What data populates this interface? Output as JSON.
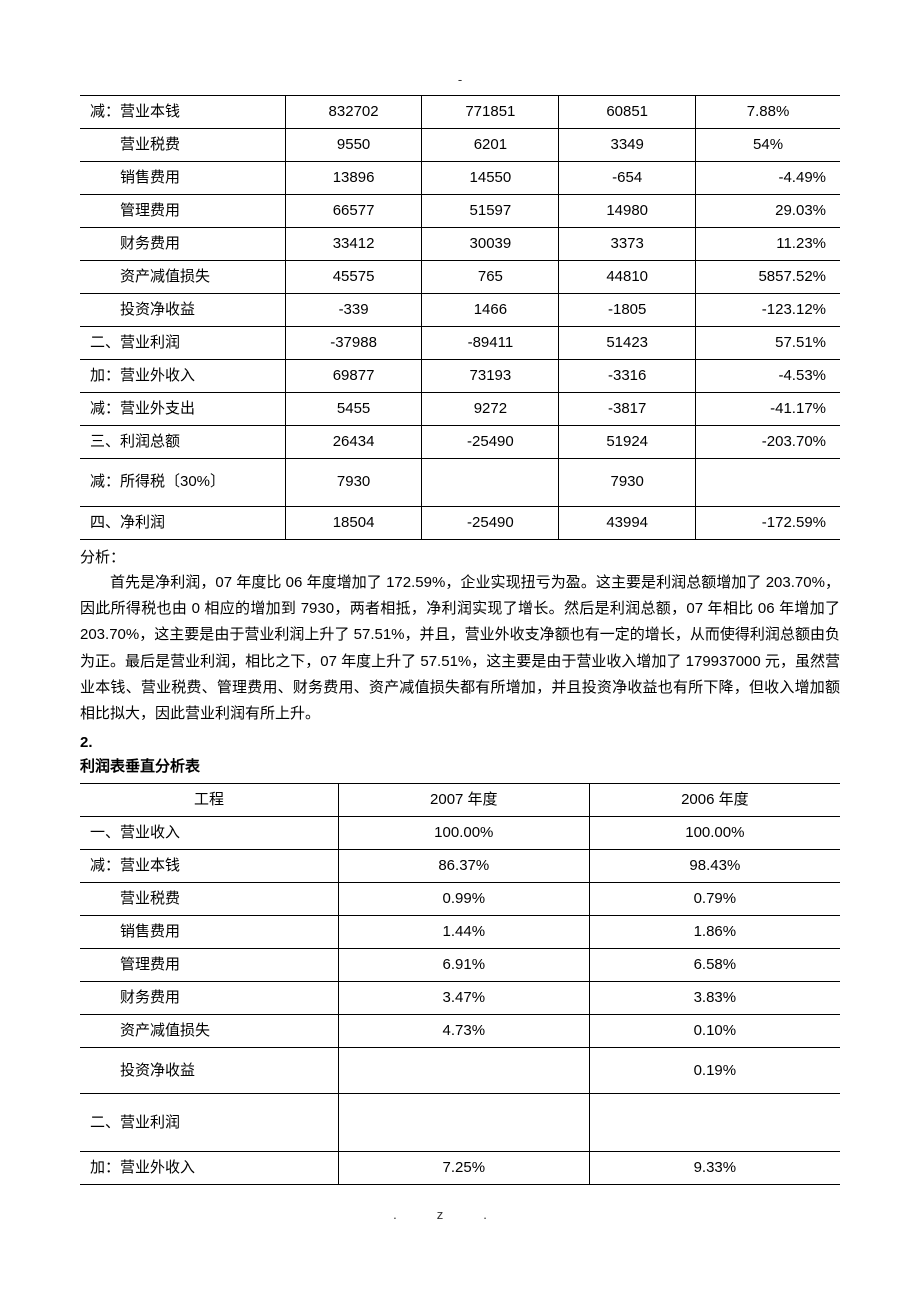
{
  "topMark": "-",
  "table1": {
    "rows": [
      {
        "label": "减：营业本钱",
        "v1": "832702",
        "v2": "771851",
        "v3": "60851",
        "v4": "7.88%",
        "tall": false,
        "align": "c"
      },
      {
        "label": "　　营业税费",
        "v1": "9550",
        "v2": "6201",
        "v3": "3349",
        "v4": "54%",
        "tall": false,
        "align": "c"
      },
      {
        "label": "　　销售费用",
        "v1": "13896",
        "v2": "14550",
        "v3": "-654",
        "v4": "-4.49%",
        "tall": false,
        "align": "r"
      },
      {
        "label": "　　管理费用",
        "v1": "66577",
        "v2": "51597",
        "v3": "14980",
        "v4": "29.03%",
        "tall": false,
        "align": "r"
      },
      {
        "label": "　　财务费用",
        "v1": "33412",
        "v2": "30039",
        "v3": "3373",
        "v4": "11.23%",
        "tall": false,
        "align": "r"
      },
      {
        "label": "　　资产减值损失",
        "v1": "45575",
        "v2": "765",
        "v3": "44810",
        "v4": "5857.52%",
        "tall": false,
        "align": "r"
      },
      {
        "label": "　　投资净收益",
        "v1": "-339",
        "v2": "1466",
        "v3": "-1805",
        "v4": "-123.12%",
        "tall": false,
        "align": "r"
      },
      {
        "label": "二、营业利润",
        "v1": "-37988",
        "v2": "-89411",
        "v3": "51423",
        "v4": "57.51%",
        "tall": false,
        "align": "r"
      },
      {
        "label": "加：营业外收入",
        "v1": "69877",
        "v2": "73193",
        "v3": "-3316",
        "v4": "-4.53%",
        "tall": false,
        "align": "r"
      },
      {
        "label": "减：营业外支出",
        "v1": "5455",
        "v2": "9272",
        "v3": "-3817",
        "v4": "-41.17%",
        "tall": false,
        "align": "r"
      },
      {
        "label": "三、利润总额",
        "v1": "26434",
        "v2": "-25490",
        "v3": "51924",
        "v4": "-203.70%",
        "tall": false,
        "align": "r"
      },
      {
        "label": "减：所得税〔30%〕",
        "v1": "7930",
        "v2": "",
        "v3": "7930",
        "v4": "",
        "tall": true,
        "align": "c"
      },
      {
        "label": "四、净利润",
        "v1": "18504",
        "v2": "-25490",
        "v3": "43994",
        "v4": "-172.59%",
        "tall": false,
        "align": "r"
      }
    ]
  },
  "analysis": {
    "title": "分析：",
    "body": "首先是净利润，07 年度比 06 年度增加了 172.59%，企业实现扭亏为盈。这主要是利润总额增加了 203.70%，因此所得税也由 0 相应的增加到 7930，两者相抵，净利润实现了增长。然后是利润总额，07 年相比 06 年增加了 203.70%，这主要是由于营业利润上升了 57.51%，并且，营业外收支净额也有一定的增长，从而使得利润总额由负为正。最后是营业利润，相比之下，07 年度上升了 57.51%，这主要是由于营业收入增加了 179937000 元，虽然营业本钱、营业税费、管理费用、财务费用、资产减值损失都有所增加，并且投资净收益也有所下降，但收入增加额相比拟大，因此营业利润有所上升。"
  },
  "section2": {
    "num": "2.",
    "title": "利润表垂直分析表"
  },
  "table2": {
    "header": {
      "c1": "工程",
      "c2": "2007 年度",
      "c3": "2006 年度"
    },
    "rows": [
      {
        "label": "一、营业收入",
        "v1": "100.00%",
        "v2": "100.00%",
        "h": ""
      },
      {
        "label": "减：营业本钱",
        "v1": "86.37%",
        "v2": "98.43%",
        "h": ""
      },
      {
        "label": "　　营业税费",
        "v1": "0.99%",
        "v2": "0.79%",
        "h": ""
      },
      {
        "label": "　　销售费用",
        "v1": "1.44%",
        "v2": "1.86%",
        "h": ""
      },
      {
        "label": "　　管理费用",
        "v1": "6.91%",
        "v2": "6.58%",
        "h": ""
      },
      {
        "label": "　　财务费用",
        "v1": "3.47%",
        "v2": "3.83%",
        "h": ""
      },
      {
        "label": "　　资产减值损失",
        "v1": "4.73%",
        "v2": "0.10%",
        "h": ""
      },
      {
        "label": "　　投资净收益",
        "v1": "",
        "v2": "0.19%",
        "h": "tall2"
      },
      {
        "label": "二、营业利润",
        "v1": "",
        "v2": "",
        "h": "tall3"
      },
      {
        "label": "加：营业外收入",
        "v1": "7.25%",
        "v2": "9.33%",
        "h": ""
      }
    ]
  },
  "footer": ".z."
}
